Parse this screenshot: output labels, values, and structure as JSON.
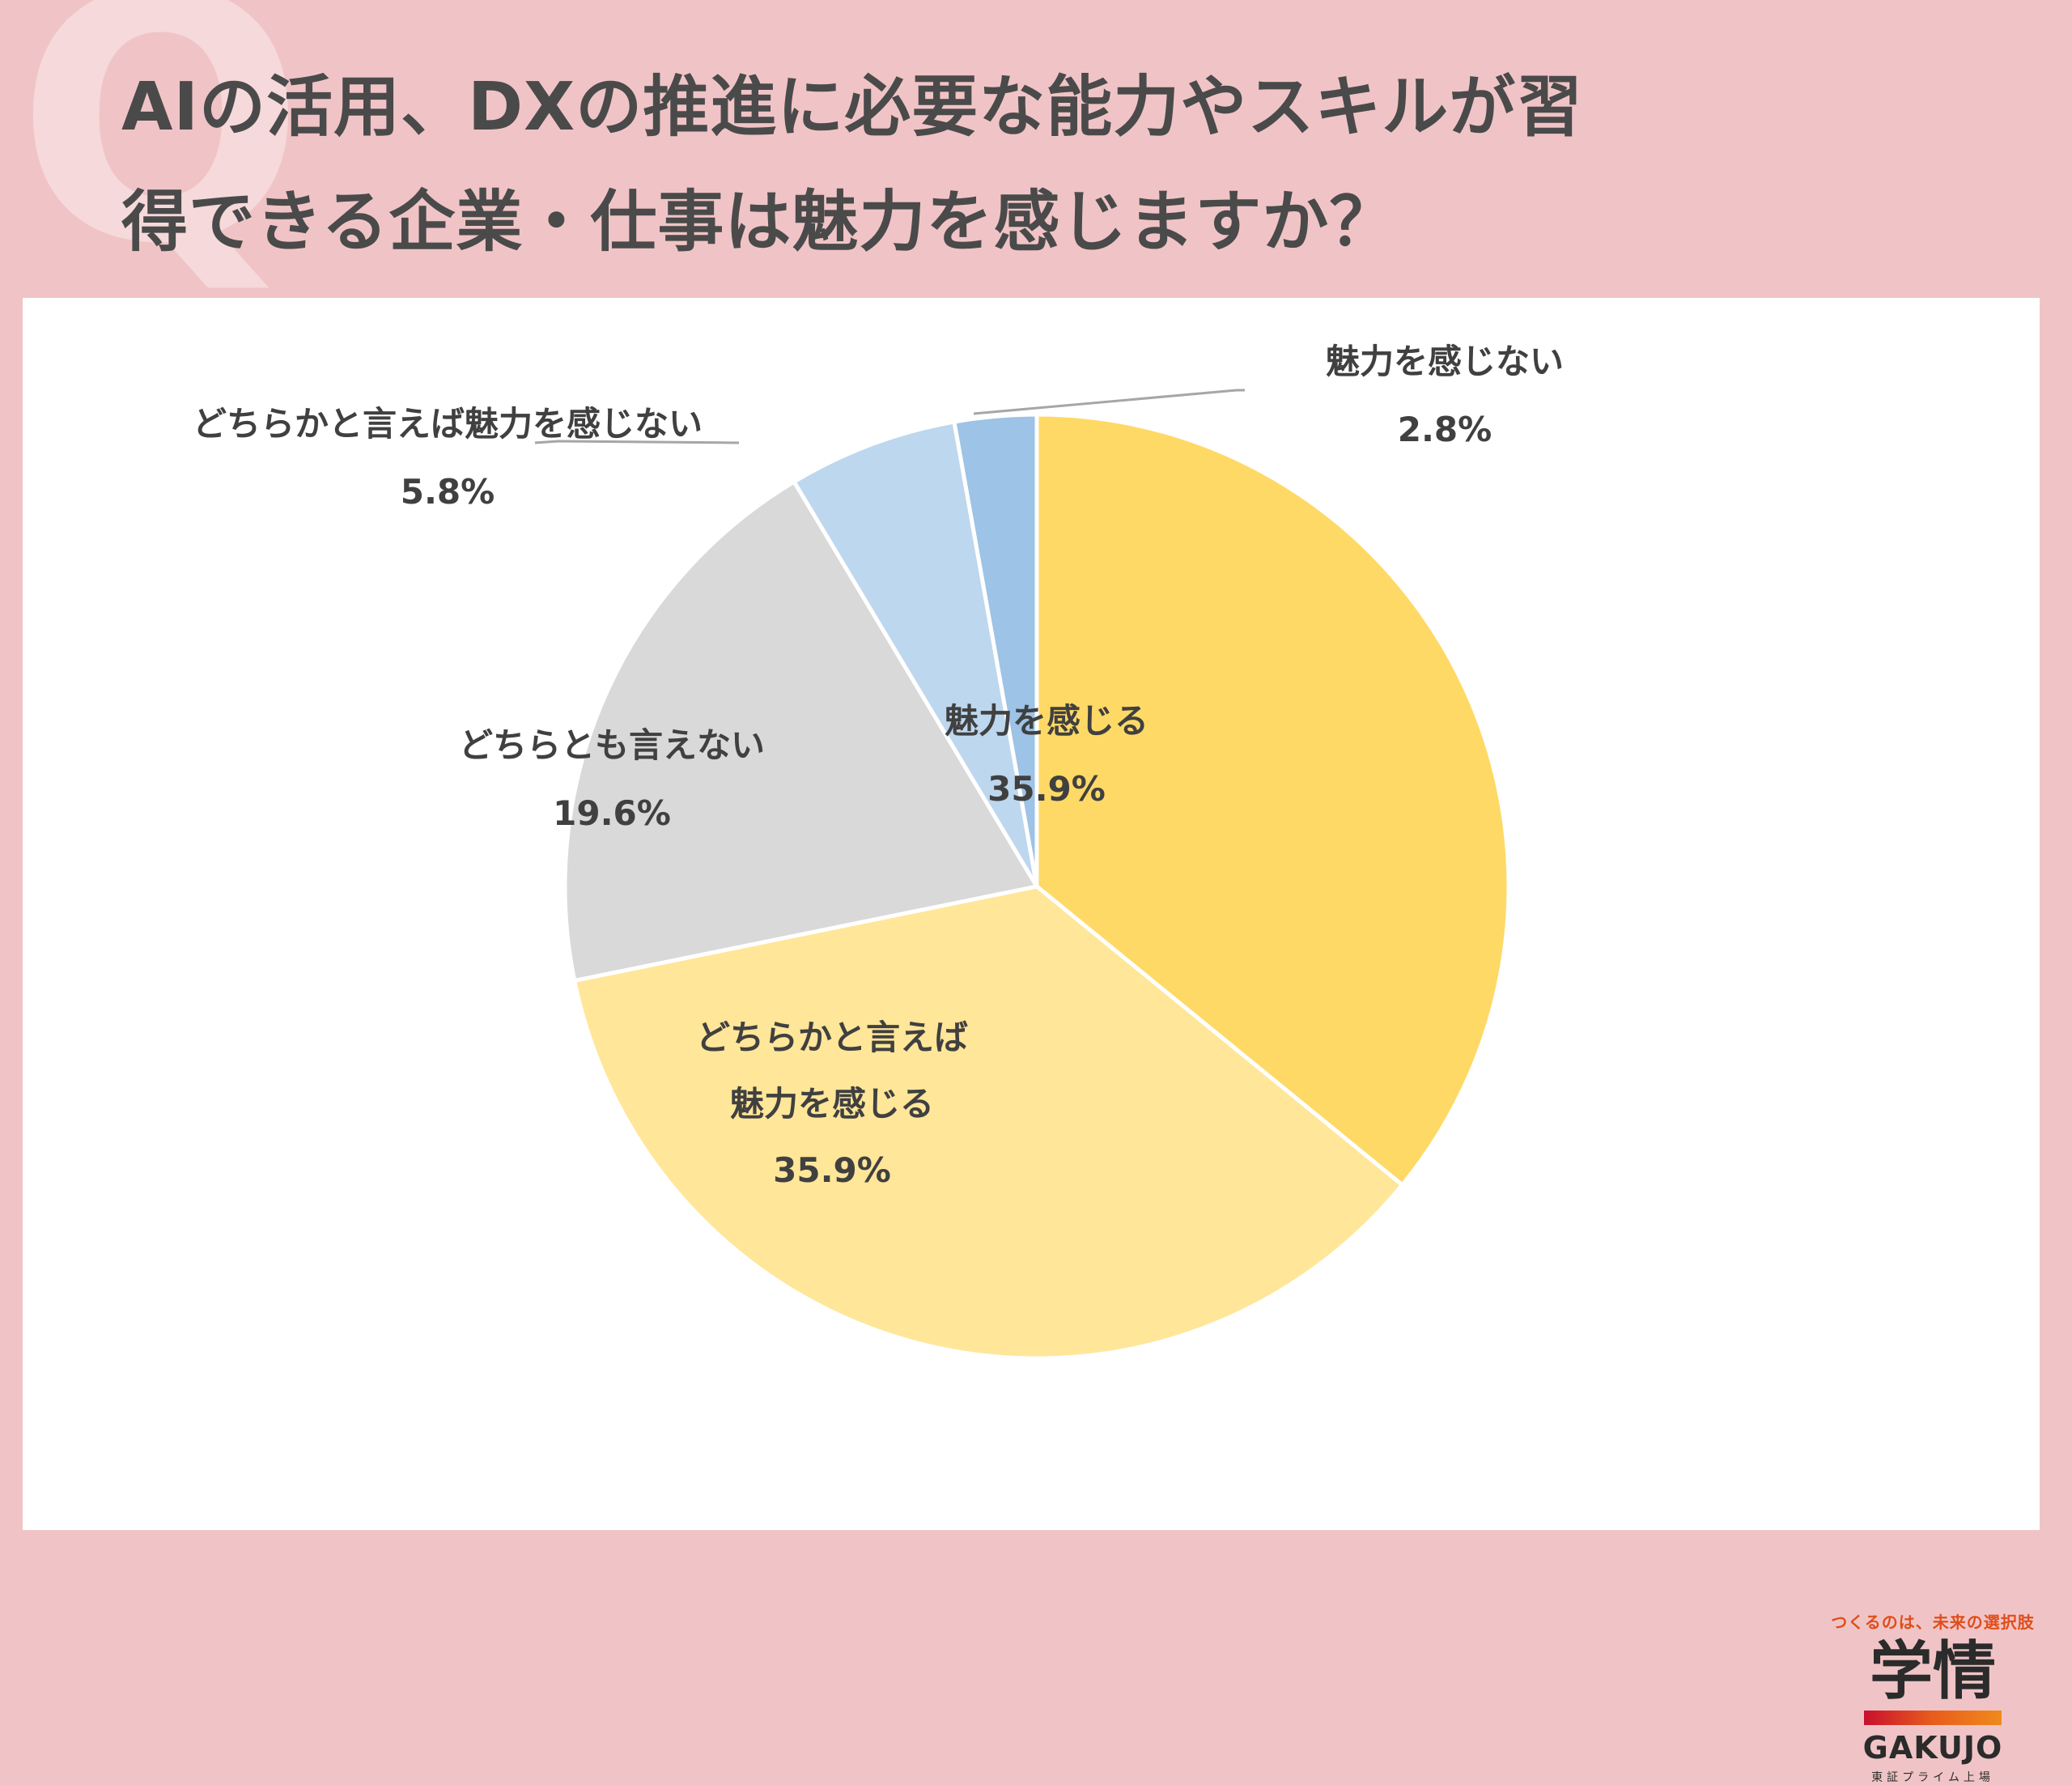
{
  "header": {
    "q_mark": "Q",
    "title_line1": "AIの活用、DXの推進に必要な能力やスキルが習",
    "title_line2": "得できる企業・仕事は魅力を感じますか？"
  },
  "chart_data": {
    "type": "pie",
    "start_angle_deg": 0,
    "direction": "clockwise",
    "slices": [
      {
        "label": "魅力を感じる",
        "value": 35.9,
        "value_text": "35.9%",
        "color": "#ffd966"
      },
      {
        "label": "どちらかと言えば魅力を感じる",
        "label_lines": [
          "どちらかと言えば",
          "魅力を感じる"
        ],
        "value": 35.9,
        "value_text": "35.9%",
        "color": "#ffe699"
      },
      {
        "label": "どちらとも言えない",
        "value": 19.6,
        "value_text": "19.6%",
        "color": "#d9d9d9"
      },
      {
        "label": "どちらかと言えば魅力を感じない",
        "value": 5.8,
        "value_text": "5.8%",
        "color": "#bdd7ee"
      },
      {
        "label": "魅力を感じない",
        "value": 2.8,
        "value_text": "2.8%",
        "color": "#9dc3e6"
      }
    ]
  },
  "logo": {
    "tagline": "つくるのは、未来の選択肢",
    "kanji": "学情",
    "name": "GAKUJO",
    "sub": "東証プライム上場"
  }
}
